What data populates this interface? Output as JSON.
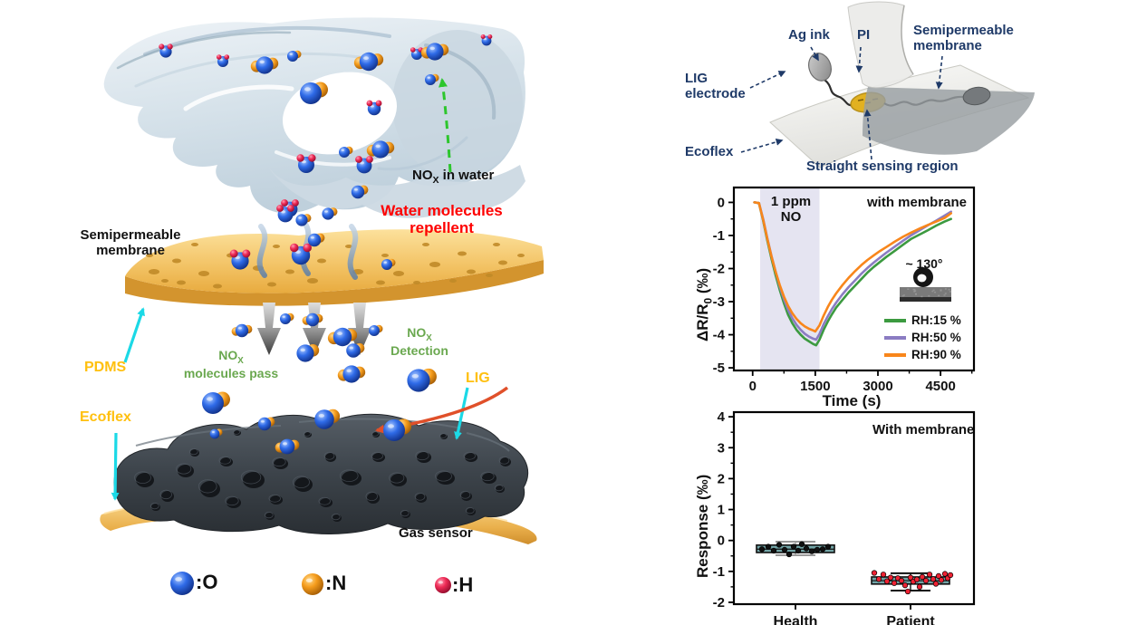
{
  "colors": {
    "navy_label": "#1f3a68",
    "red_text": "#fe0000",
    "green_text": "#6aa84f",
    "gold_text": "#ffc010",
    "cyan_arrow": "#1bd9e6",
    "green_dashed_arrow": "#2dc62d",
    "red_curved_arrow": "#e0502a",
    "membrane_gold": "#efb94e",
    "sensor_foam": "#3c434a",
    "atom_blue": "#2f6be8",
    "atom_orange": "#f59c1c",
    "atom_red": "#ee2233"
  },
  "left_panel": {
    "nox_in_water": {
      "pre": "NO",
      "sub": "X",
      "post": " in water"
    },
    "water_repellent_line1": "Water molecules",
    "water_repellent_line2": "repellent",
    "membrane_line1": "Semipermeable",
    "membrane_line2": "membrane",
    "pdms": "PDMS",
    "ecoflex": "Ecoflex",
    "nox_pass": {
      "pre": "NO",
      "sub": "X",
      "post": ""
    },
    "nox_pass_line2": "molecules pass",
    "nox_detect": {
      "pre": "NO",
      "sub": "X",
      "post": ""
    },
    "nox_detect_line2": "Detection",
    "lig": "LIG",
    "gas_sensor": "Gas sensor",
    "atom_legend": [
      {
        "atom": "O",
        "label": ":O",
        "color": "#2f6be8"
      },
      {
        "atom": "N",
        "label": ":N",
        "color": "#f59c1c"
      },
      {
        "atom": "H",
        "label": ":H",
        "color": "#ee2233"
      }
    ]
  },
  "schematic": {
    "ag_ink": "Ag ink",
    "pi": "PI",
    "membrane_line1": "Semipermeable",
    "membrane_line2": "membrane",
    "lig_line1": "LIG",
    "lig_line2": "electrode",
    "ecoflex": "Ecoflex",
    "sensing_region": "Straight sensing region"
  },
  "chart_data": [
    {
      "type": "line",
      "xlabel": "Time (s)",
      "ylabel": "ΔR/R0 (‰)",
      "ylabel_pre": "ΔR/R",
      "ylabel_sub": "0",
      "ylabel_post": " (‰)",
      "xlim": [
        -450,
        5300
      ],
      "ylim": [
        -5.08,
        0.45
      ],
      "xticks": [
        0,
        1500,
        3000,
        4500
      ],
      "xminor": [
        750,
        2250,
        3750,
        5250
      ],
      "yticks": [
        0,
        -1,
        -2,
        -3,
        -4,
        -5
      ],
      "yminor": [
        -0.5,
        -1.5,
        -2.5,
        -3.5,
        -4.5
      ],
      "grid": false,
      "shade_region": {
        "x0": 180,
        "x1": 1600,
        "color": "#e5e4f1"
      },
      "annotations": {
        "exposure_line1": "1 ppm",
        "exposure_line2": "NO",
        "condition": "with membrane",
        "contact_angle": "~ 130°"
      },
      "legend_position": "lower right",
      "legend": [
        {
          "name": "RH:15 %",
          "color": "#3c9a40"
        },
        {
          "name": "RH:50 %",
          "color": "#8b7cc2"
        },
        {
          "name": "RH:90 %",
          "color": "#f8861b"
        }
      ],
      "series": [
        {
          "name": "RH:15 %",
          "color": "#3c9a40",
          "points": [
            [
              40,
              0
            ],
            [
              150,
              -0.02
            ],
            [
              250,
              -0.55
            ],
            [
              350,
              -1.15
            ],
            [
              450,
              -1.7
            ],
            [
              550,
              -2.2
            ],
            [
              650,
              -2.65
            ],
            [
              750,
              -3.05
            ],
            [
              850,
              -3.4
            ],
            [
              950,
              -3.65
            ],
            [
              1050,
              -3.85
            ],
            [
              1150,
              -4.0
            ],
            [
              1250,
              -4.12
            ],
            [
              1350,
              -4.2
            ],
            [
              1450,
              -4.28
            ],
            [
              1520,
              -4.32
            ],
            [
              1600,
              -4.15
            ],
            [
              1700,
              -3.85
            ],
            [
              1800,
              -3.6
            ],
            [
              1900,
              -3.38
            ],
            [
              2000,
              -3.18
            ],
            [
              2150,
              -2.95
            ],
            [
              2300,
              -2.72
            ],
            [
              2450,
              -2.52
            ],
            [
              2600,
              -2.32
            ],
            [
              2750,
              -2.12
            ],
            [
              2900,
              -1.95
            ],
            [
              3050,
              -1.8
            ],
            [
              3200,
              -1.65
            ],
            [
              3400,
              -1.47
            ],
            [
              3600,
              -1.28
            ],
            [
              3800,
              -1.1
            ],
            [
              4000,
              -0.97
            ],
            [
              4200,
              -0.84
            ],
            [
              4400,
              -0.7
            ],
            [
              4600,
              -0.58
            ],
            [
              4750,
              -0.5
            ]
          ]
        },
        {
          "name": "RH:50 %",
          "color": "#8b7cc2",
          "points": [
            [
              40,
              0
            ],
            [
              150,
              -0.02
            ],
            [
              250,
              -0.5
            ],
            [
              350,
              -1.08
            ],
            [
              450,
              -1.62
            ],
            [
              550,
              -2.1
            ],
            [
              650,
              -2.55
            ],
            [
              750,
              -2.93
            ],
            [
              850,
              -3.25
            ],
            [
              950,
              -3.5
            ],
            [
              1050,
              -3.7
            ],
            [
              1150,
              -3.85
            ],
            [
              1250,
              -3.97
            ],
            [
              1350,
              -4.06
            ],
            [
              1450,
              -4.12
            ],
            [
              1520,
              -4.15
            ],
            [
              1600,
              -3.98
            ],
            [
              1700,
              -3.68
            ],
            [
              1800,
              -3.44
            ],
            [
              1900,
              -3.22
            ],
            [
              2000,
              -3.03
            ],
            [
              2150,
              -2.78
            ],
            [
              2300,
              -2.56
            ],
            [
              2450,
              -2.36
            ],
            [
              2600,
              -2.16
            ],
            [
              2750,
              -1.98
            ],
            [
              2900,
              -1.82
            ],
            [
              3050,
              -1.67
            ],
            [
              3200,
              -1.52
            ],
            [
              3400,
              -1.34
            ],
            [
              3600,
              -1.16
            ],
            [
              3800,
              -0.99
            ],
            [
              4000,
              -0.84
            ],
            [
              4200,
              -0.69
            ],
            [
              4400,
              -0.55
            ],
            [
              4600,
              -0.4
            ],
            [
              4750,
              -0.28
            ]
          ]
        },
        {
          "name": "RH:90 %",
          "color": "#f8861b",
          "points": [
            [
              40,
              0
            ],
            [
              150,
              -0.02
            ],
            [
              250,
              -0.52
            ],
            [
              350,
              -1.1
            ],
            [
              450,
              -1.63
            ],
            [
              550,
              -2.1
            ],
            [
              650,
              -2.5
            ],
            [
              750,
              -2.85
            ],
            [
              850,
              -3.13
            ],
            [
              950,
              -3.35
            ],
            [
              1050,
              -3.52
            ],
            [
              1150,
              -3.65
            ],
            [
              1250,
              -3.75
            ],
            [
              1350,
              -3.82
            ],
            [
              1450,
              -3.87
            ],
            [
              1500,
              -3.9
            ],
            [
              1600,
              -3.72
            ],
            [
              1700,
              -3.42
            ],
            [
              1800,
              -3.16
            ],
            [
              1900,
              -2.94
            ],
            [
              2000,
              -2.75
            ],
            [
              2150,
              -2.5
            ],
            [
              2300,
              -2.28
            ],
            [
              2450,
              -2.08
            ],
            [
              2600,
              -1.9
            ],
            [
              2750,
              -1.74
            ],
            [
              2900,
              -1.6
            ],
            [
              3050,
              -1.47
            ],
            [
              3200,
              -1.35
            ],
            [
              3400,
              -1.19
            ],
            [
              3600,
              -1.04
            ],
            [
              3800,
              -0.91
            ],
            [
              4000,
              -0.79
            ],
            [
              4200,
              -0.68
            ],
            [
              4400,
              -0.58
            ],
            [
              4600,
              -0.47
            ],
            [
              4750,
              -0.33
            ]
          ]
        }
      ]
    },
    {
      "type": "box-scatter",
      "xlabel": "",
      "ylabel": "Response (‰)",
      "categories": [
        "Health",
        "Patient"
      ],
      "ylim": [
        -2.06,
        4.15
      ],
      "yticks": [
        4,
        3,
        2,
        1,
        0,
        -1,
        -2
      ],
      "yminor": [
        3.5,
        2.5,
        1.5,
        0.5,
        -0.5,
        -1.5
      ],
      "annotation": "With membrane",
      "box_fill": "#72a4a6",
      "boxes": [
        {
          "category": "Health",
          "q1": -0.39,
          "q3": -0.15,
          "median": -0.28,
          "whisker_low": -0.48,
          "whisker_high": -0.04,
          "whisker_color": "#9a9a9a",
          "point_color": "#111111",
          "points": [
            [
              -37,
              -0.28
            ],
            [
              -30,
              -0.2
            ],
            [
              -24,
              -0.33
            ],
            [
              -18,
              -0.14
            ],
            [
              -12,
              -0.3
            ],
            [
              -7,
              -0.45
            ],
            [
              -2,
              -0.2
            ],
            [
              3,
              -0.33
            ],
            [
              7,
              -0.12
            ],
            [
              12,
              -0.26
            ],
            [
              18,
              -0.35
            ],
            [
              24,
              -0.3
            ],
            [
              30,
              -0.28
            ],
            [
              36,
              -0.2
            ]
          ]
        },
        {
          "category": "Patient",
          "q1": -1.41,
          "q3": -1.18,
          "median": -1.3,
          "whisker_low": -1.62,
          "whisker_high": -1.06,
          "whisker_color": "#111111",
          "point_color": "#ee2233",
          "points": [
            [
              -40,
              -1.05
            ],
            [
              -35,
              -1.25
            ],
            [
              -30,
              -1.1
            ],
            [
              -26,
              -1.32
            ],
            [
              -22,
              -1.2
            ],
            [
              -18,
              -1.38
            ],
            [
              -14,
              -1.22
            ],
            [
              -10,
              -1.3
            ],
            [
              -6,
              -1.45
            ],
            [
              -3,
              -1.65
            ],
            [
              0,
              -1.2
            ],
            [
              3,
              -1.33
            ],
            [
              7,
              -1.26
            ],
            [
              10,
              -1.5
            ],
            [
              13,
              -1.18
            ],
            [
              17,
              -1.3
            ],
            [
              21,
              -1.1
            ],
            [
              25,
              -1.25
            ],
            [
              28,
              -1.4
            ],
            [
              31,
              -1.15
            ],
            [
              34,
              -1.28
            ],
            [
              38,
              -1.08
            ],
            [
              41,
              -1.22
            ],
            [
              44,
              -1.12
            ]
          ]
        }
      ]
    }
  ]
}
